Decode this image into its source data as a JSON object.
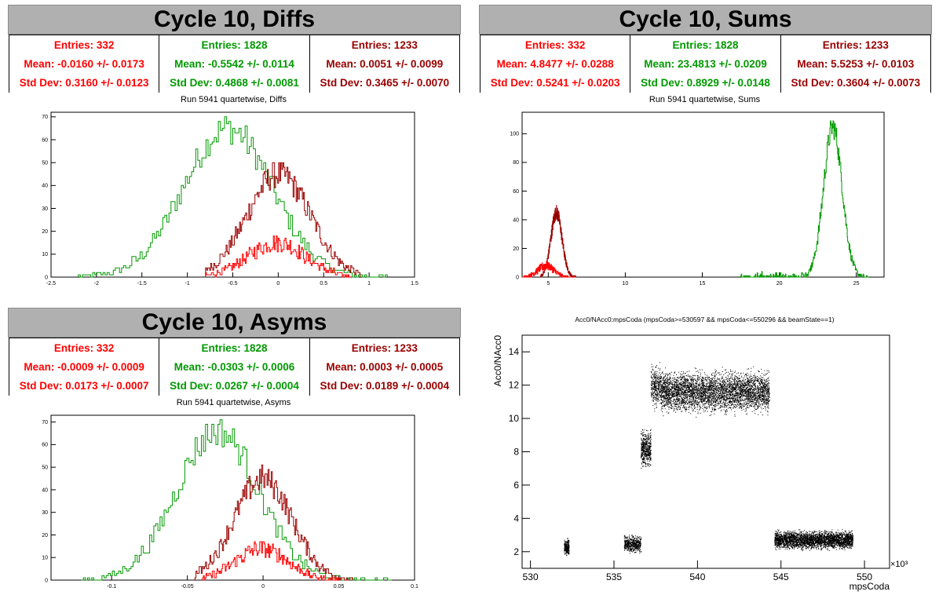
{
  "colors": {
    "red": "#ff0000",
    "green": "#009900",
    "darkred": "#990000",
    "bar": "#b0b0b0"
  },
  "panels": {
    "diffs": {
      "title": "Cycle 10, Diffs",
      "subtitle": "Run 5941 quartetwise, Diffs",
      "stats": [
        {
          "entries": "Entries: 332",
          "mean": "Mean: -0.0160 +/- 0.0173",
          "std": "Std Dev: 0.3160 +/- 0.0123"
        },
        {
          "entries": "Entries: 1828",
          "mean": "Mean: -0.5542 +/- 0.0114",
          "std": "Std Dev: 0.4868 +/- 0.0081"
        },
        {
          "entries": "Entries: 1233",
          "mean": "Mean: 0.0051 +/- 0.0099",
          "std": "Std Dev: 0.3465 +/- 0.0070"
        }
      ]
    },
    "sums": {
      "title": "Cycle 10, Sums",
      "subtitle": "Run 5941 quartetwise, Sums",
      "stats": [
        {
          "entries": "Entries: 332",
          "mean": "Mean: 4.8477 +/- 0.0288",
          "std": "Std Dev: 0.5241 +/- 0.0203"
        },
        {
          "entries": "Entries: 1828",
          "mean": "Mean: 23.4813 +/- 0.0209",
          "std": "Std Dev: 0.8929 +/- 0.0148"
        },
        {
          "entries": "Entries: 1233",
          "mean": "Mean: 5.5253 +/- 0.0103",
          "std": "Std Dev: 0.3604 +/- 0.0073"
        }
      ]
    },
    "asyms": {
      "title": "Cycle 10, Asyms",
      "subtitle": "Run 5941 quartetwise, Asyms",
      "stats": [
        {
          "entries": "Entries: 332",
          "mean": "Mean: -0.0009 +/- 0.0009",
          "std": "Std Dev: 0.0173 +/- 0.0007"
        },
        {
          "entries": "Entries: 1828",
          "mean": "Mean: -0.0303 +/- 0.0006",
          "std": "Std Dev: 0.0267 +/- 0.0004"
        },
        {
          "entries": "Entries: 1233",
          "mean": "Mean: 0.0003 +/- 0.0005",
          "std": "Std Dev: 0.0189 +/- 0.0004"
        }
      ]
    },
    "scatter": {
      "title": "Acc0/NAcc0:mpsCoda (mpsCoda>=530597 && mpsCoda<=550296 && beamState==1)"
    }
  },
  "chart_data": [
    {
      "id": "diffs",
      "type": "histogram",
      "xlim": [
        -2.5,
        1.5
      ],
      "ylim": [
        0,
        72
      ],
      "xticks": [
        -2.5,
        -2,
        -1.5,
        -1,
        -0.5,
        0,
        0.5,
        1,
        1.5
      ],
      "xtick_labels": [
        "-2.5",
        "-2",
        "-1.5",
        "-1",
        "-0.5",
        "0",
        "0.5",
        "1",
        "1.5"
      ],
      "yticks": [
        0,
        10,
        20,
        30,
        40,
        50,
        60,
        70
      ],
      "series": [
        {
          "color": "green",
          "mean": -0.554,
          "std": 0.487,
          "peak": 65,
          "jitter": 7,
          "range": [
            -2.2,
            1.2
          ],
          "bins": 150
        },
        {
          "color": "darkred",
          "mean": 0.005,
          "std": 0.3465,
          "peak": 45,
          "jitter": 6,
          "range": [
            -0.8,
            0.9
          ],
          "bins": 150
        },
        {
          "color": "red",
          "mean": -0.016,
          "std": 0.316,
          "peak": 15,
          "jitter": 4,
          "range": [
            -0.8,
            0.8
          ],
          "bins": 150
        }
      ]
    },
    {
      "id": "sums",
      "type": "histogram",
      "xlim": [
        3.3,
        26.8
      ],
      "ylim": [
        0,
        115
      ],
      "xticks": [
        5,
        10,
        15,
        20,
        25
      ],
      "xtick_labels": [
        "5",
        "10",
        "15",
        "20",
        "25"
      ],
      "yticks": [
        0,
        20,
        40,
        60,
        80,
        100
      ],
      "series": [
        {
          "color": "green",
          "mean": 23.48,
          "std": 0.6,
          "peak": 105,
          "jitter": 8,
          "range": [
            17.5,
            25.8
          ],
          "bins": 280,
          "tail": 3
        },
        {
          "color": "darkred",
          "mean": 5.53,
          "std": 0.36,
          "peak": 45,
          "jitter": 5,
          "range": [
            4.5,
            6.8
          ],
          "bins": 280
        },
        {
          "color": "red",
          "mean": 4.85,
          "std": 0.52,
          "peak": 8,
          "jitter": 3,
          "range": [
            3.3,
            6.8
          ],
          "bins": 280
        }
      ]
    },
    {
      "id": "asyms",
      "type": "histogram",
      "xlim": [
        -0.14,
        0.1
      ],
      "ylim": [
        0,
        73
      ],
      "xticks": [
        -0.1,
        -0.05,
        0,
        0.05,
        0.1
      ],
      "xtick_labels": [
        "-0.1",
        "-0.05",
        "0",
        "0.05",
        "0.1"
      ],
      "yticks": [
        0,
        10,
        20,
        30,
        40,
        50,
        60,
        70
      ],
      "series": [
        {
          "color": "green",
          "mean": -0.03,
          "std": 0.027,
          "peak": 66,
          "jitter": 7,
          "range": [
            -0.12,
            0.085
          ],
          "bins": 150
        },
        {
          "color": "darkred",
          "mean": 0.0,
          "std": 0.019,
          "peak": 45,
          "jitter": 6,
          "range": [
            -0.045,
            0.06
          ],
          "bins": 150
        },
        {
          "color": "red",
          "mean": -0.001,
          "std": 0.017,
          "peak": 14,
          "jitter": 4,
          "range": [
            -0.04,
            0.05
          ],
          "bins": 150
        }
      ]
    },
    {
      "id": "scatter",
      "type": "scatter",
      "xlim": [
        529.5,
        551.5
      ],
      "ylim": [
        1,
        15
      ],
      "xticks": [
        530,
        535,
        540,
        545,
        550
      ],
      "xtick_labels": [
        "530",
        "535",
        "540",
        "545",
        "550"
      ],
      "yticks": [
        2,
        4,
        6,
        8,
        10,
        12,
        14
      ],
      "xlabel": "mpsCoda",
      "ylabel": "Acc0/NAcc0",
      "xexp": "×10³",
      "clusters": [
        {
          "x": [
            532.0,
            532.3
          ],
          "y": [
            1.6,
            2.9
          ],
          "n": 250
        },
        {
          "x": [
            535.6,
            536.6
          ],
          "y": [
            1.8,
            3.1
          ],
          "n": 500
        },
        {
          "x": [
            536.6,
            537.2
          ],
          "y": [
            6.8,
            9.6
          ],
          "n": 500
        },
        {
          "x": [
            537.2,
            537.8
          ],
          "y": [
            10.3,
            13.5
          ],
          "n": 350
        },
        {
          "x": [
            537.8,
            544.3
          ],
          "y": [
            10.0,
            13.2
          ],
          "n": 4200
        },
        {
          "x": [
            544.6,
            549.3
          ],
          "y": [
            2.0,
            3.4
          ],
          "n": 3200
        }
      ]
    }
  ]
}
